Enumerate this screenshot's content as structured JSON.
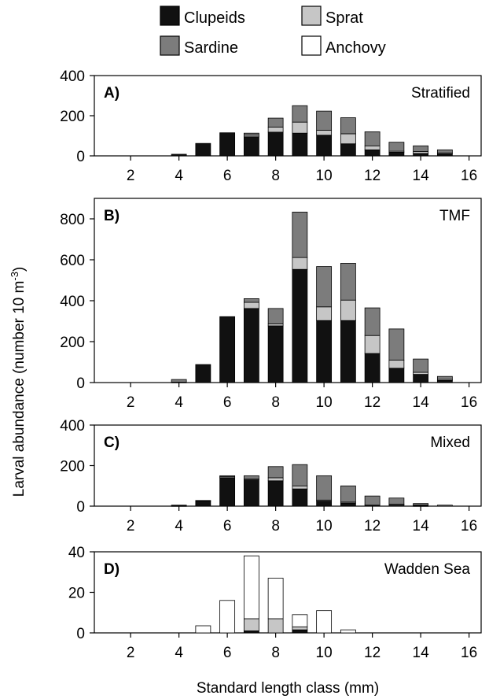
{
  "chart_data": {
    "type": "bar",
    "stacked": true,
    "legend": {
      "placement": "top",
      "entries": [
        {
          "name": "Clupeids",
          "color": "#111111"
        },
        {
          "name": "Sprat",
          "color": "#c6c6c6"
        },
        {
          "name": "Sardine",
          "color": "#7c7c7c"
        },
        {
          "name": "Anchovy",
          "color": "#ffffff"
        }
      ]
    },
    "ylabel": "Larval abundance (number 10 m",
    "ylabel_superscript": "-3",
    "ylabel_close": ")",
    "xlabel": "Standard length class (mm)",
    "x_categories": [
      1,
      2,
      3,
      4,
      5,
      6,
      7,
      8,
      9,
      10,
      11,
      12,
      13,
      14,
      15
    ],
    "x_tick_labels": [
      "2",
      "4",
      "6",
      "8",
      "10",
      "12",
      "14",
      "16"
    ],
    "x_tick_values": [
      2,
      4,
      6,
      8,
      10,
      12,
      14,
      16
    ],
    "panels": [
      {
        "label": "A)",
        "name": "Stratified",
        "ylim": [
          0,
          400
        ],
        "yticks": [
          0,
          200,
          400
        ],
        "ytick_labels": [
          "0",
          "200",
          "400"
        ],
        "series": [
          {
            "name": "Clupeids",
            "values": [
              0,
              0,
              0,
              8,
              62,
              115,
              95,
              118,
              113,
              103,
              60,
              30,
              18,
              12,
              10
            ]
          },
          {
            "name": "Sprat",
            "values": [
              0,
              0,
              0,
              0,
              0,
              0,
              8,
              25,
              55,
              25,
              50,
              20,
              5,
              10,
              5
            ]
          },
          {
            "name": "Sardine",
            "values": [
              0,
              0,
              0,
              0,
              0,
              0,
              10,
              45,
              82,
              95,
              80,
              70,
              45,
              28,
              15
            ]
          },
          {
            "name": "Anchovy",
            "values": [
              0,
              0,
              0,
              0,
              0,
              0,
              0,
              0,
              0,
              0,
              0,
              0,
              0,
              0,
              0
            ]
          }
        ]
      },
      {
        "label": "B)",
        "name": "TMF",
        "ylim": [
          0,
          900
        ],
        "yticks": [
          0,
          200,
          400,
          600,
          800
        ],
        "ytick_labels": [
          "0",
          "200",
          "400",
          "600",
          "800"
        ],
        "series": [
          {
            "name": "Clupeids",
            "values": [
              0,
              0,
              0,
              2,
              88,
              322,
              362,
              277,
              553,
              303,
              303,
              142,
              70,
              40,
              10
            ]
          },
          {
            "name": "Sprat",
            "values": [
              0,
              0,
              0,
              0,
              0,
              0,
              30,
              10,
              58,
              67,
              100,
              88,
              40,
              10,
              5
            ]
          },
          {
            "name": "Sardine",
            "values": [
              0,
              0,
              0,
              13,
              0,
              0,
              18,
              75,
              222,
              197,
              180,
              135,
              152,
              65,
              15
            ]
          },
          {
            "name": "Anchovy",
            "values": [
              0,
              0,
              0,
              0,
              0,
              0,
              0,
              0,
              0,
              0,
              0,
              0,
              0,
              0,
              0
            ]
          }
        ]
      },
      {
        "label": "C)",
        "name": "Mixed",
        "ylim": [
          0,
          400
        ],
        "yticks": [
          0,
          200,
          400
        ],
        "ytick_labels": [
          "0",
          "200",
          "400"
        ],
        "series": [
          {
            "name": "Clupeids",
            "values": [
              0,
              0,
              0,
              2,
              25,
              140,
              130,
              125,
              85,
              25,
              15,
              5,
              5,
              2,
              0
            ]
          },
          {
            "name": "Sprat",
            "values": [
              0,
              0,
              0,
              0,
              0,
              5,
              5,
              15,
              15,
              5,
              5,
              0,
              5,
              3,
              0
            ]
          },
          {
            "name": "Sardine",
            "values": [
              0,
              0,
              0,
              3,
              3,
              5,
              15,
              55,
              105,
              120,
              80,
              45,
              30,
              8,
              5
            ]
          },
          {
            "name": "Anchovy",
            "values": [
              0,
              0,
              0,
              0,
              0,
              0,
              0,
              0,
              0,
              0,
              0,
              0,
              0,
              0,
              0
            ]
          }
        ]
      },
      {
        "label": "D)",
        "name": "Wadden Sea",
        "ylim": [
          0,
          40
        ],
        "yticks": [
          0,
          20,
          40
        ],
        "ytick_labels": [
          "0",
          "20",
          "40"
        ],
        "series": [
          {
            "name": "Clupeids",
            "values": [
              0,
              0,
              0,
              0,
              0,
              0,
              1,
              0,
              1.5,
              0,
              0,
              0,
              0,
              0,
              0
            ]
          },
          {
            "name": "Sprat",
            "values": [
              0,
              0,
              0,
              0,
              0,
              0,
              6,
              7,
              1.5,
              0,
              0,
              0,
              0,
              0,
              0
            ]
          },
          {
            "name": "Sardine",
            "values": [
              0,
              0,
              0,
              0,
              0,
              0,
              0,
              0,
              0,
              0,
              0,
              0,
              0,
              0,
              0
            ]
          },
          {
            "name": "Anchovy",
            "values": [
              0,
              0,
              0,
              0,
              3.5,
              16,
              31,
              20,
              6,
              11,
              1.5,
              0,
              0,
              0,
              0
            ]
          }
        ]
      }
    ]
  }
}
